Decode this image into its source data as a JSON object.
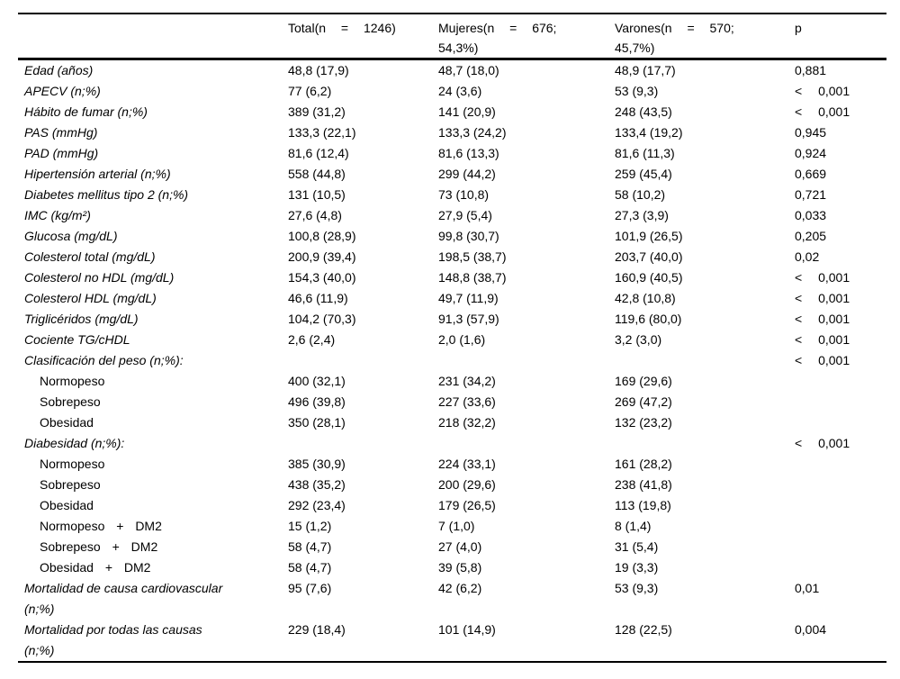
{
  "table": {
    "columns": [
      {
        "label": ""
      },
      {
        "label": "Total(n = 1246)"
      },
      {
        "label": "Mujeres(n = 676; 54,3%)"
      },
      {
        "label": "Varones(n = 570; 45,7%)"
      },
      {
        "label": "p"
      }
    ],
    "rows": [
      {
        "label": "Edad (años)",
        "indent": false,
        "total": "48,8 (17,9)",
        "mujeres": "48,7 (18,0)",
        "varones": "48,9 (17,7)",
        "p": "0,881"
      },
      {
        "label": "APECV (n;%)",
        "indent": false,
        "total": "77 (6,2)",
        "mujeres": "24 (3,6)",
        "varones": "53 (9,3)",
        "p": "< 0,001"
      },
      {
        "label": "Hábito de fumar (n;%)",
        "indent": false,
        "total": "389 (31,2)",
        "mujeres": "141 (20,9)",
        "varones": "248 (43,5)",
        "p": "< 0,001"
      },
      {
        "label": "PAS (mmHg)",
        "indent": false,
        "total": "133,3 (22,1)",
        "mujeres": "133,3 (24,2)",
        "varones": "133,4 (19,2)",
        "p": "0,945"
      },
      {
        "label": "PAD (mmHg)",
        "indent": false,
        "total": "81,6 (12,4)",
        "mujeres": "81,6 (13,3)",
        "varones": "81,6 (11,3)",
        "p": "0,924"
      },
      {
        "label": "Hipertensión arterial (n;%)",
        "indent": false,
        "total": "558 (44,8)",
        "mujeres": "299 (44,2)",
        "varones": "259 (45,4)",
        "p": "0,669"
      },
      {
        "label": "Diabetes mellitus tipo 2 (n;%)",
        "indent": false,
        "total": "131 (10,5)",
        "mujeres": "73 (10,8)",
        "varones": "58 (10,2)",
        "p": "0,721"
      },
      {
        "label": "IMC (kg/m²)",
        "indent": false,
        "total": "27,6 (4,8)",
        "mujeres": "27,9 (5,4)",
        "varones": "27,3 (3,9)",
        "p": "0,033"
      },
      {
        "label": "Glucosa (mg/dL)",
        "indent": false,
        "total": "100,8 (28,9)",
        "mujeres": "99,8 (30,7)",
        "varones": "101,9 (26,5)",
        "p": "0,205"
      },
      {
        "label": "Colesterol total (mg/dL)",
        "indent": false,
        "total": "200,9 (39,4)",
        "mujeres": "198,5 (38,7)",
        "varones": "203,7 (40,0)",
        "p": "0,02"
      },
      {
        "label": "Colesterol no HDL (mg/dL)",
        "indent": false,
        "total": "154,3 (40,0)",
        "mujeres": "148,8 (38,7)",
        "varones": "160,9 (40,5)",
        "p": "< 0,001"
      },
      {
        "label": "Colesterol HDL (mg/dL)",
        "indent": false,
        "total": "46,6 (11,9)",
        "mujeres": "49,7 (11,9)",
        "varones": "42,8 (10,8)",
        "p": "< 0,001"
      },
      {
        "label": "Triglicéridos (mg/dL)",
        "indent": false,
        "total": "104,2 (70,3)",
        "mujeres": "91,3 (57,9)",
        "varones": "119,6 (80,0)",
        "p": "< 0,001"
      },
      {
        "label": "Cociente TG/cHDL",
        "indent": false,
        "total": "2,6 (2,4)",
        "mujeres": "2,0 (1,6)",
        "varones": "3,2 (3,0)",
        "p": "< 0,001"
      },
      {
        "label": "Clasificación del peso (n;%):",
        "indent": false,
        "total": "",
        "mujeres": "",
        "varones": "",
        "p": "< 0,001"
      },
      {
        "label": "Normopeso",
        "indent": true,
        "total": "400 (32,1)",
        "mujeres": "231 (34,2)",
        "varones": "169 (29,6)",
        "p": ""
      },
      {
        "label": "Sobrepeso",
        "indent": true,
        "total": "496 (39,8)",
        "mujeres": "227 (33,6)",
        "varones": "269 (47,2)",
        "p": ""
      },
      {
        "label": "Obesidad",
        "indent": true,
        "total": "350 (28,1)",
        "mujeres": "218 (32,2)",
        "varones": "132 (23,2)",
        "p": ""
      },
      {
        "label": "Diabesidad (n;%):",
        "indent": false,
        "total": "",
        "mujeres": "",
        "varones": "",
        "p": "< 0,001"
      },
      {
        "label": "Normopeso",
        "indent": true,
        "total": "385 (30,9)",
        "mujeres": "224 (33,1)",
        "varones": "161 (28,2)",
        "p": ""
      },
      {
        "label": "Sobrepeso",
        "indent": true,
        "total": "438 (35,2)",
        "mujeres": "200 (29,6)",
        "varones": "238 (41,8)",
        "p": ""
      },
      {
        "label": "Obesidad",
        "indent": true,
        "total": "292 (23,4)",
        "mujeres": "179 (26,5)",
        "varones": "113 (19,8)",
        "p": ""
      },
      {
        "label": "Normopeso + DM2",
        "indent": true,
        "total": "15 (1,2)",
        "mujeres": "7 (1,0)",
        "varones": "8 (1,4)",
        "p": ""
      },
      {
        "label": "Sobrepeso + DM2",
        "indent": true,
        "total": "58 (4,7)",
        "mujeres": "27 (4,0)",
        "varones": "31 (5,4)",
        "p": ""
      },
      {
        "label": "Obesidad + DM2",
        "indent": true,
        "total": "58 (4,7)",
        "mujeres": "39 (5,8)",
        "varones": "19 (3,3)",
        "p": ""
      },
      {
        "label": "Mortalidad de causa cardiovascular\n(n;%)",
        "indent": false,
        "total": "95 (7,6)",
        "mujeres": "42 (6,2)",
        "varones": "53 (9,3)",
        "p": "0,01"
      },
      {
        "label": "Mortalidad por todas las causas\n(n;%)",
        "indent": false,
        "total": "229 (18,4)",
        "mujeres": "101 (14,9)",
        "varones": "128 (22,5)",
        "p": "0,004"
      }
    ]
  }
}
